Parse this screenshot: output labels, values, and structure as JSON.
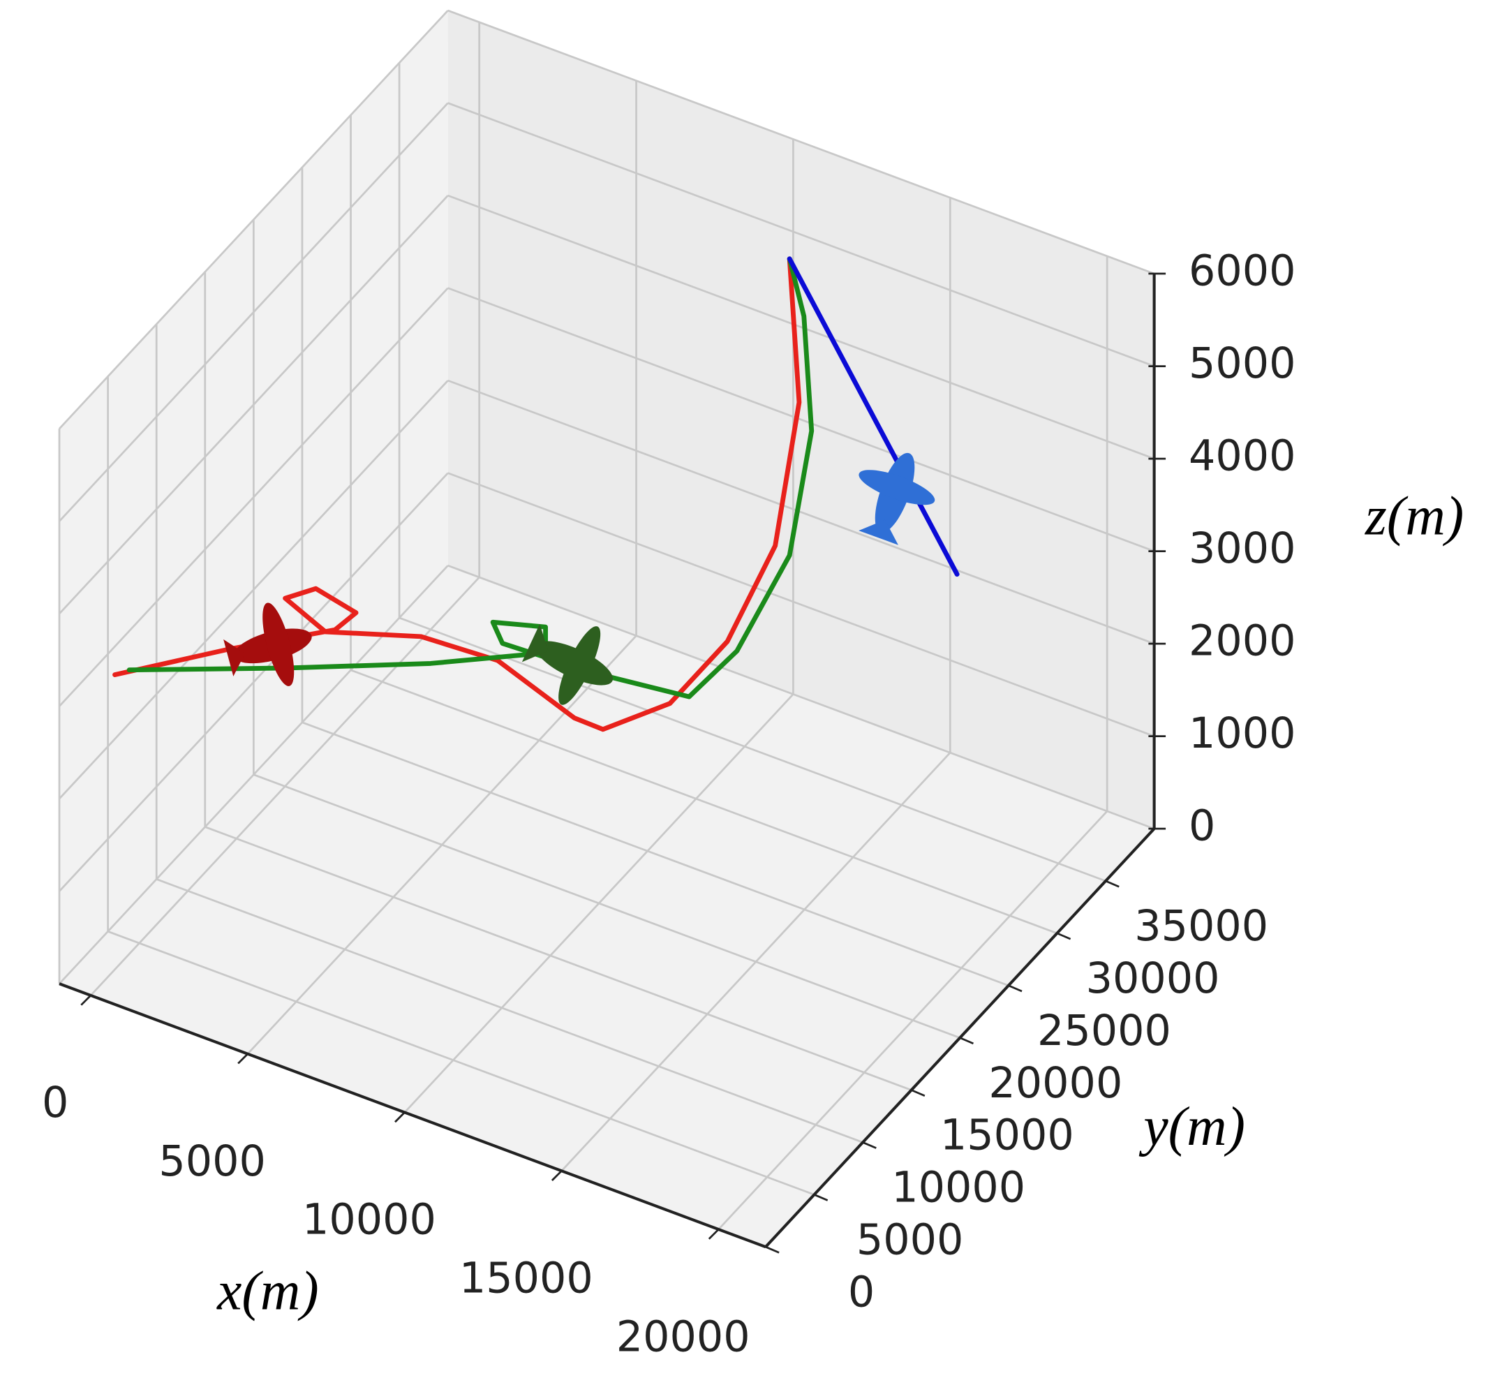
{
  "chart_data": {
    "type": "line3d",
    "xlabel": "x(m)",
    "ylabel": "y(m)",
    "zlabel": "z(m)",
    "xlim": [
      -1000,
      21500
    ],
    "ylim": [
      0,
      40000
    ],
    "zlim": [
      0,
      6000
    ],
    "xticks": [
      0,
      5000,
      10000,
      15000,
      20000
    ],
    "yticks": [
      0,
      5000,
      10000,
      15000,
      20000,
      25000,
      30000,
      35000
    ],
    "zticks": [
      0,
      1000,
      2000,
      3000,
      4000,
      5000,
      6000
    ],
    "grid": true,
    "series": [
      {
        "color": "#e8211b",
        "x": [
          -779,
          2570,
          5614,
          6131,
          4695,
          3720,
          4845,
          7430,
          9250,
          11070,
          11366,
          12262,
          12544,
          12521,
          12355,
          11122
        ],
        "y": [
          5000,
          6000,
          7000,
          7500,
          8000,
          8000,
          8500,
          10000,
          12000,
          14000,
          16000,
          20000,
          25000,
          30000,
          33000,
          36000
        ],
        "z": [
          2803,
          3392,
          3871,
          4065,
          4087,
          3860,
          3583,
          3689,
          3434,
          2818,
          2505,
          2446,
          2587,
          3054,
          4245,
          5300
        ]
      },
      {
        "color": "#1a8a1a",
        "x": [
          -322,
          4090,
          8044,
          11084,
          10930,
          9253,
          9402,
          11680,
          13491,
          13159,
          13288,
          13061,
          12043,
          11122
        ],
        "y": [
          5000,
          7000,
          9000,
          11000,
          11500,
          11500,
          12000,
          14000,
          18000,
          24000,
          29000,
          32000,
          34500,
          36000
        ],
        "z": [
          2913,
          3265,
          3589,
          3862,
          4065,
          3905,
          3639,
          3382,
          2900,
          2675,
          3160,
          4137,
          4967,
          5300
        ]
      },
      {
        "color": "#0b0bd6",
        "x": [
          11122,
          16457
        ],
        "y": [
          36000,
          36000
        ],
        "z": [
          5300,
          2565
        ]
      }
    ]
  }
}
